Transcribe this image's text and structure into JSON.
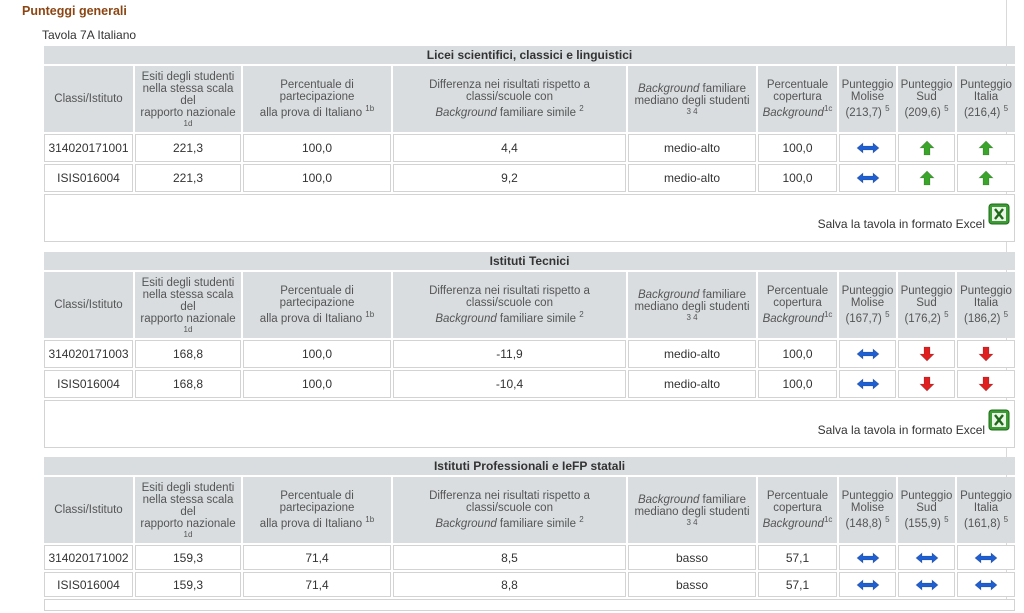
{
  "page": {
    "section_title": "Punteggi generali",
    "table_title": "Tavola 7A Italiano"
  },
  "colors": {
    "header_bg": "#d9dde0",
    "section_title": "#8b4513",
    "arrow_equal": "#1f5fd1",
    "arrow_up": "#3aa52a",
    "arrow_down": "#e02020"
  },
  "headers": {
    "c1": "Classi/Istituto",
    "c2_line1": "Esiti degli studenti",
    "c2_line2": "nella stessa scala",
    "c2_line3": "del",
    "c2_line4": "rapporto nazionale",
    "c2_sup": "1d",
    "c3_line1": "Percentuale di",
    "c3_line2": "partecipazione",
    "c3_line3": "alla prova di Italiano",
    "c3_sup": "1b",
    "c4_line1": "Differenza nei risultati rispetto a",
    "c4_line2": "classi/scuole con",
    "c4_italic": "Background",
    "c4_line3": " familiare simile",
    "c4_sup": "2",
    "c5_italic": "Background",
    "c5_line1": " familiare",
    "c5_line2": "mediano degli studenti",
    "c5_sup": "3 4",
    "c6_line1": "Percentuale",
    "c6_line2": "copertura",
    "c6_italic": "Background",
    "c6_sup": "1c",
    "c7_line1": "Punteggio",
    "c7_line2": "Molise",
    "c8_line1": "Punteggio",
    "c8_line2": "Sud",
    "c9_line1": "Punteggio",
    "c9_line2": "Italia",
    "score_sup": "5"
  },
  "excel_label": "Salva la tavola in formato Excel",
  "sections": [
    {
      "title": "Licei scientifici, classici e linguistici",
      "molise": "(213,7)",
      "sud": "(209,6)",
      "italia": "(216,4)",
      "rows": [
        {
          "id": "314020171001",
          "esiti": "221,3",
          "perc": "100,0",
          "diff": "4,4",
          "bg": "medio-alto",
          "cop": "100,0",
          "m": "equal",
          "s": "up",
          "i": "up"
        },
        {
          "id": "ISIS016004",
          "esiti": "221,3",
          "perc": "100,0",
          "diff": "9,2",
          "bg": "medio-alto",
          "cop": "100,0",
          "m": "equal",
          "s": "up",
          "i": "up"
        }
      ]
    },
    {
      "title": "Istituti Tecnici",
      "molise": "(167,7)",
      "sud": "(176,2)",
      "italia": "(186,2)",
      "rows": [
        {
          "id": "314020171003",
          "esiti": "168,8",
          "perc": "100,0",
          "diff": "-11,9",
          "bg": "medio-alto",
          "cop": "100,0",
          "m": "equal",
          "s": "down",
          "i": "down"
        },
        {
          "id": "ISIS016004",
          "esiti": "168,8",
          "perc": "100,0",
          "diff": "-10,4",
          "bg": "medio-alto",
          "cop": "100,0",
          "m": "equal",
          "s": "down",
          "i": "down"
        }
      ]
    },
    {
      "title": "Istituti Professionali e IeFP statali",
      "molise": "(148,8)",
      "sud": "(155,9)",
      "italia": "(161,8)",
      "rows": [
        {
          "id": "314020171002",
          "esiti": "159,3",
          "perc": "71,4",
          "diff": "8,5",
          "bg": "basso",
          "cop": "57,1",
          "m": "equal",
          "s": "equal",
          "i": "equal"
        },
        {
          "id": "ISIS016004",
          "esiti": "159,3",
          "perc": "71,4",
          "diff": "8,8",
          "bg": "basso",
          "cop": "57,1",
          "m": "equal",
          "s": "equal",
          "i": "equal"
        }
      ]
    }
  ]
}
